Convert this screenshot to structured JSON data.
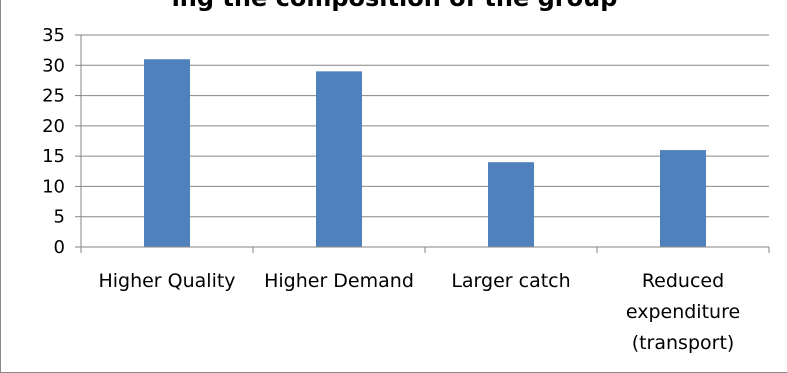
{
  "chart_data": {
    "type": "bar",
    "title": "ing the composition of the group",
    "categories": [
      [
        "Higher Quality"
      ],
      [
        "Higher Demand"
      ],
      [
        "Larger catch"
      ],
      [
        "Reduced",
        "expenditure",
        "(transport)"
      ]
    ],
    "values": [
      31,
      29,
      14,
      16
    ],
    "ylim": [
      0,
      35
    ],
    "yticks": [
      0,
      5,
      10,
      15,
      20,
      25,
      30,
      35
    ],
    "grid": true,
    "bar_color": "#4F81BD",
    "grid_color": "#868686",
    "axis_color": "#868686",
    "xlabel": "",
    "ylabel": ""
  }
}
